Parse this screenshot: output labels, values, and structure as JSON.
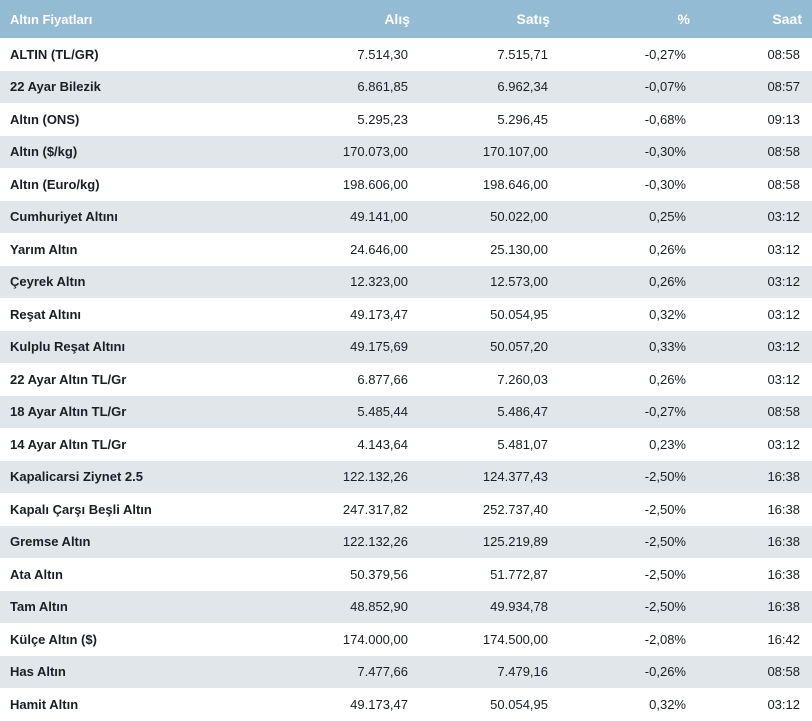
{
  "table": {
    "headers": {
      "name": "Altın Fiyatları",
      "buy": "Alış",
      "sell": "Satış",
      "change": "%",
      "time": "Saat"
    },
    "rows": [
      {
        "name": "ALTIN (TL/GR)",
        "buy": "7.514,30",
        "sell": "7.515,71",
        "change": "-0,27%",
        "time": "08:58"
      },
      {
        "name": "22 Ayar Bilezik",
        "buy": "6.861,85",
        "sell": "6.962,34",
        "change": "-0,07%",
        "time": "08:57"
      },
      {
        "name": "Altın (ONS)",
        "buy": "5.295,23",
        "sell": "5.296,45",
        "change": "-0,68%",
        "time": "09:13"
      },
      {
        "name": "Altın ($/kg)",
        "buy": "170.073,00",
        "sell": "170.107,00",
        "change": "-0,30%",
        "time": "08:58"
      },
      {
        "name": "Altın (Euro/kg)",
        "buy": "198.606,00",
        "sell": "198.646,00",
        "change": "-0,30%",
        "time": "08:58"
      },
      {
        "name": "Cumhuriyet Altını",
        "buy": "49.141,00",
        "sell": "50.022,00",
        "change": "0,25%",
        "time": "03:12"
      },
      {
        "name": "Yarım Altın",
        "buy": "24.646,00",
        "sell": "25.130,00",
        "change": "0,26%",
        "time": "03:12"
      },
      {
        "name": "Çeyrek Altın",
        "buy": "12.323,00",
        "sell": "12.573,00",
        "change": "0,26%",
        "time": "03:12"
      },
      {
        "name": "Reşat Altını",
        "buy": "49.173,47",
        "sell": "50.054,95",
        "change": "0,32%",
        "time": "03:12"
      },
      {
        "name": "Kulplu Reşat Altını",
        "buy": "49.175,69",
        "sell": "50.057,20",
        "change": "0,33%",
        "time": "03:12"
      },
      {
        "name": "22 Ayar Altın TL/Gr",
        "buy": "6.877,66",
        "sell": "7.260,03",
        "change": "0,26%",
        "time": "03:12"
      },
      {
        "name": "18 Ayar Altın TL/Gr",
        "buy": "5.485,44",
        "sell": "5.486,47",
        "change": "-0,27%",
        "time": "08:58"
      },
      {
        "name": "14 Ayar Altın TL/Gr",
        "buy": "4.143,64",
        "sell": "5.481,07",
        "change": "0,23%",
        "time": "03:12"
      },
      {
        "name": "Kapalicarsi Ziynet 2.5",
        "buy": "122.132,26",
        "sell": "124.377,43",
        "change": "-2,50%",
        "time": "16:38"
      },
      {
        "name": "Kapalı Çarşı Beşli Altın",
        "buy": "247.317,82",
        "sell": "252.737,40",
        "change": "-2,50%",
        "time": "16:38"
      },
      {
        "name": "Gremse Altın",
        "buy": "122.132,26",
        "sell": "125.219,89",
        "change": "-2,50%",
        "time": "16:38"
      },
      {
        "name": "Ata Altın",
        "buy": "50.379,56",
        "sell": "51.772,87",
        "change": "-2,50%",
        "time": "16:38"
      },
      {
        "name": "Tam Altın",
        "buy": "48.852,90",
        "sell": "49.934,78",
        "change": "-2,50%",
        "time": "16:38"
      },
      {
        "name": "Külçe Altın ($)",
        "buy": "174.000,00",
        "sell": "174.500,00",
        "change": "-2,08%",
        "time": "16:42"
      },
      {
        "name": "Has Altın",
        "buy": "7.477,66",
        "sell": "7.479,16",
        "change": "-0,26%",
        "time": "08:58"
      },
      {
        "name": "Hamit Altın",
        "buy": "49.173,47",
        "sell": "50.054,95",
        "change": "0,32%",
        "time": "03:12"
      }
    ]
  },
  "colors": {
    "header_bg": "#94bbd4",
    "header_text": "#ffffff",
    "row_alt_bg": "#e0e6ea",
    "row_bg": "#ffffff",
    "text": "#1b1f24"
  }
}
